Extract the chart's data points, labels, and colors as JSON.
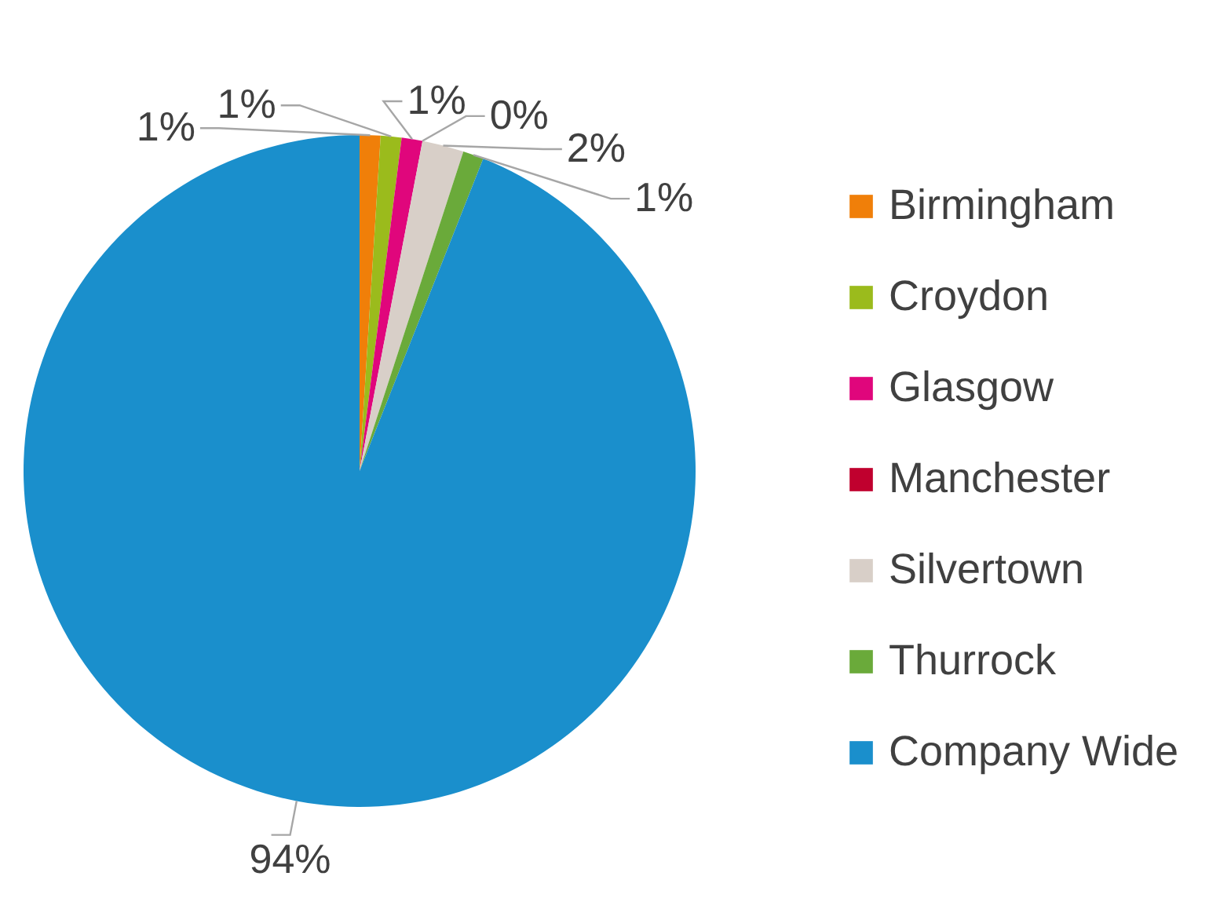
{
  "chart_data": {
    "type": "pie",
    "categories": [
      "Birmingham",
      "Croydon",
      "Glasgow",
      "Manchester",
      "Silvertown",
      "Thurrock",
      "Company Wide"
    ],
    "values": [
      1,
      1,
      1,
      0,
      2,
      1,
      94
    ],
    "value_labels": [
      "1%",
      "1%",
      "1%",
      "0%",
      "2%",
      "1%",
      "94%"
    ],
    "colors": [
      "#f07f09",
      "#9bbb1c",
      "#e0067c",
      "#c0002e",
      "#d8cfc8",
      "#6aaa3a",
      "#1a8fcc"
    ],
    "legend": "right"
  }
}
